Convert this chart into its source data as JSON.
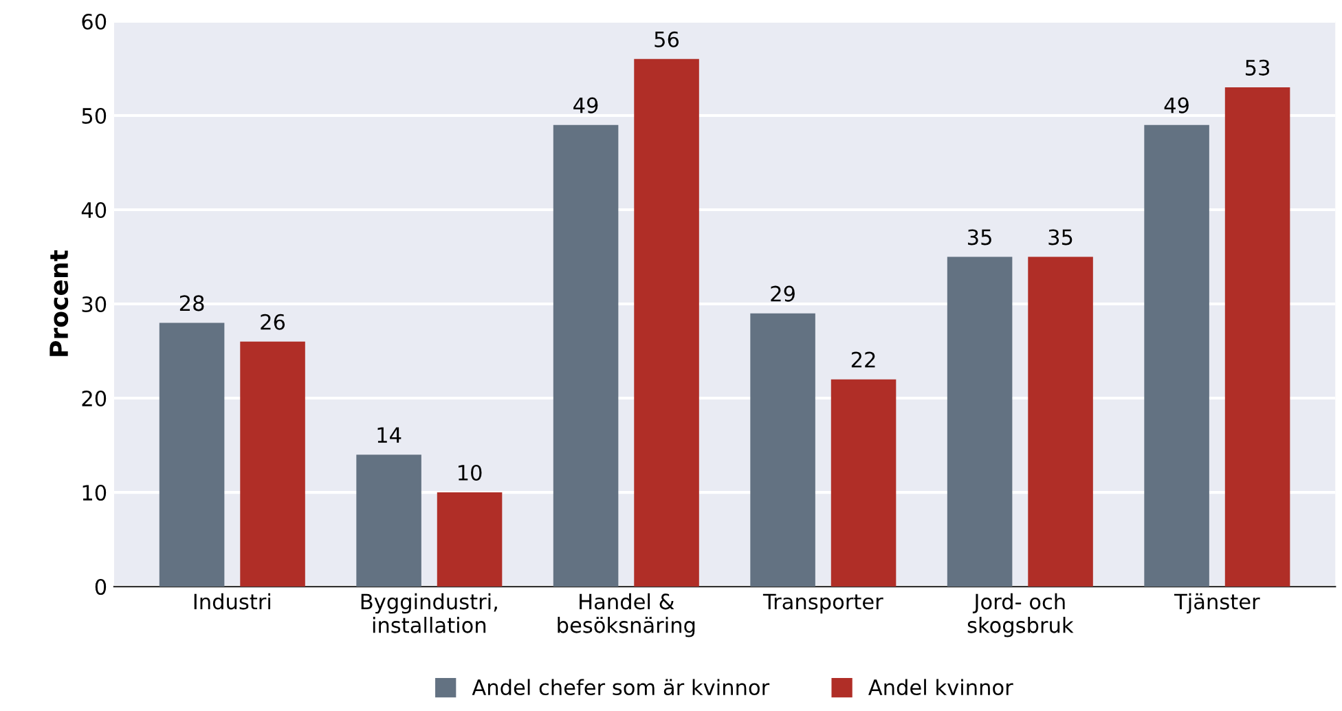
{
  "chart_data": {
    "type": "bar",
    "ylabel": "Procent",
    "categories": [
      "Industri",
      "Byggindustri,\ninstallation",
      "Handel &\nbesöksnäring",
      "Transporter",
      "Jord- och\nskogsbruk",
      "Tjänster"
    ],
    "series": [
      {
        "name": "Andel chefer som är kvinnor",
        "color": "#637282",
        "values": [
          28,
          14,
          49,
          29,
          35,
          49
        ]
      },
      {
        "name": "Andel kvinnor",
        "color": "#b02e27",
        "values": [
          26,
          10,
          56,
          22,
          35,
          53
        ]
      }
    ],
    "ylim": [
      0,
      60
    ],
    "yticks": [
      0,
      10,
      20,
      30,
      40,
      50,
      60
    ],
    "grid": "y",
    "legend": "bottom",
    "data_labels": true
  }
}
